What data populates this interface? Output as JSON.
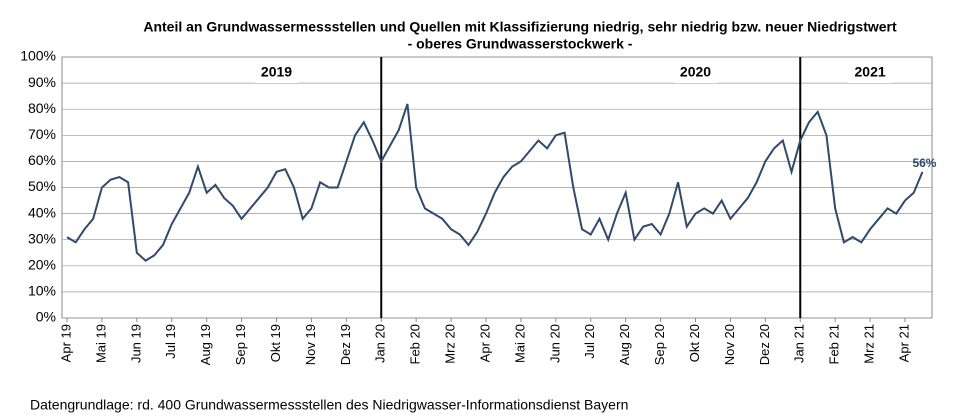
{
  "chart_data": {
    "type": "line",
    "title": "Anteil an Grundwassermessstellen und Quellen mit Klassifizierung niedrig, sehr niedrig bzw. neuer Niedrigstwert",
    "subtitle": "- oberes Grundwasserstockwerk -",
    "source": "Datengrundlage:  rd. 400 Grundwassermessstellen  des Niedrigwasser-Informationsdienst  Bayern",
    "annotations": [
      {
        "text": "2019",
        "at": 6
      },
      {
        "text": "2020",
        "at": 18
      },
      {
        "text": "2021",
        "at": 23
      }
    ],
    "dividers": [
      "Jan 20",
      "Jan 21"
    ],
    "categories": [
      "Apr 19",
      null,
      null,
      null,
      "Mai 19",
      null,
      null,
      null,
      "Jun 19",
      null,
      null,
      null,
      "Jul 19",
      null,
      null,
      null,
      "Aug 19",
      null,
      null,
      null,
      "Sep 19",
      null,
      null,
      null,
      "Okt 19",
      null,
      null,
      null,
      "Nov 19",
      null,
      null,
      null,
      "Dez 19",
      null,
      null,
      null,
      "Jan 20",
      null,
      null,
      null,
      "Feb 20",
      null,
      null,
      null,
      "Mrz 20",
      null,
      null,
      null,
      "Apr 20",
      null,
      null,
      null,
      "Mai 20",
      null,
      null,
      null,
      "Jun 20",
      null,
      null,
      null,
      "Jul 20",
      null,
      null,
      null,
      "Aug 20",
      null,
      null,
      null,
      "Sep 20",
      null,
      null,
      null,
      "Okt 20",
      null,
      null,
      null,
      "Nov 20",
      null,
      null,
      null,
      "Dez 20",
      null,
      null,
      null,
      "Jan 21",
      null,
      null,
      null,
      "Feb 21",
      null,
      null,
      null,
      "Mrz 21",
      null,
      null,
      null,
      "Apr 21",
      null,
      null
    ],
    "series": [
      {
        "name": "Anteil",
        "color": "#2e4a6e",
        "values": [
          31,
          29,
          34,
          38,
          50,
          53,
          54,
          52,
          25,
          22,
          24,
          28,
          36,
          42,
          48,
          58,
          48,
          51,
          46,
          43,
          38,
          42,
          46,
          50,
          56,
          57,
          50,
          38,
          42,
          52,
          50,
          50,
          60,
          70,
          75,
          68,
          60,
          66,
          72,
          82,
          50,
          42,
          40,
          38,
          34,
          32,
          28,
          33,
          40,
          48,
          54,
          58,
          60,
          64,
          68,
          65,
          70,
          71,
          50,
          34,
          32,
          38,
          30,
          40,
          48,
          30,
          35,
          36,
          32,
          40,
          52,
          35,
          40,
          42,
          40,
          45,
          38,
          42,
          46,
          52,
          60,
          65,
          68,
          56,
          68,
          75,
          79,
          70,
          42,
          29,
          31,
          29,
          34,
          38,
          42,
          40,
          45,
          48,
          56
        ],
        "value_labels": [
          null,
          null,
          null,
          null,
          null,
          null,
          null,
          null,
          null,
          null,
          null,
          null,
          null,
          null,
          null,
          null,
          null,
          null,
          null,
          null,
          null,
          null,
          null,
          null,
          null,
          null,
          null,
          null,
          null,
          null,
          null,
          null,
          null,
          null,
          null,
          null,
          null,
          null,
          null,
          null,
          null,
          null,
          null,
          null,
          null,
          null,
          null,
          null,
          null,
          null,
          null,
          null,
          null,
          null,
          null,
          null,
          null,
          null,
          null,
          null,
          null,
          null,
          null,
          null,
          null,
          null,
          null,
          null,
          null,
          null,
          null,
          null,
          null,
          null,
          null,
          null,
          null,
          null,
          null,
          null,
          null,
          null,
          null,
          null,
          null,
          null,
          null,
          null,
          null,
          null,
          null,
          null,
          null,
          null,
          null,
          null,
          null,
          null,
          "56%"
        ]
      }
    ],
    "ylim": [
      0,
      100
    ],
    "yticks": [
      {
        "value": 0,
        "label": "0%"
      },
      {
        "value": 10,
        "label": "10%"
      },
      {
        "value": 20,
        "label": "20%"
      },
      {
        "value": 30,
        "label": "30%"
      },
      {
        "value": 40,
        "label": "40%"
      },
      {
        "value": 50,
        "label": "50%"
      },
      {
        "value": 60,
        "label": "60%"
      },
      {
        "value": 70,
        "label": "70%"
      },
      {
        "value": 80,
        "label": "80%"
      },
      {
        "value": 90,
        "label": "90%"
      },
      {
        "value": 100,
        "label": "100%"
      }
    ],
    "grid": true
  }
}
